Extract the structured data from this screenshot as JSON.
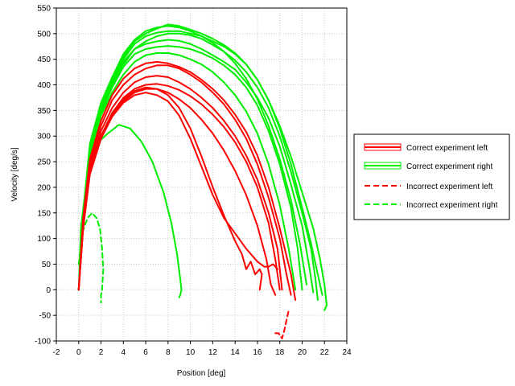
{
  "chart_data": {
    "type": "line",
    "title": "",
    "xlabel": "Position [deg]",
    "ylabel": "Velocity [deg/s]",
    "xlim": [
      -2,
      24
    ],
    "ylim": [
      -100,
      550
    ],
    "xticks": [
      -2,
      0,
      2,
      4,
      6,
      8,
      10,
      12,
      14,
      16,
      18,
      20,
      22,
      24
    ],
    "yticks": [
      -100,
      -50,
      0,
      50,
      100,
      150,
      200,
      250,
      300,
      350,
      400,
      450,
      500,
      550
    ],
    "grid": true,
    "legend_position": "right",
    "legend": [
      {
        "label": "Correct experiment left",
        "color": "#ff0000",
        "style": "solid"
      },
      {
        "label": "Correct experiment right",
        "color": "#00ee00",
        "style": "solid"
      },
      {
        "label": "Incorrect experiment left",
        "color": "#ff0000",
        "style": "dashed"
      },
      {
        "label": "Incorrect experiment right",
        "color": "#00ee00",
        "style": "dashed"
      }
    ],
    "series": [
      {
        "name": "Correct experiment right",
        "color": "#00ee00",
        "style": "solid",
        "x": [
          0,
          0.2,
          0.8,
          1.6,
          2.6,
          3.6,
          4.6,
          5.6,
          6.6,
          7.6,
          8.3,
          8.8,
          9.1,
          9.2,
          9.1,
          9.0
        ],
        "y": [
          0,
          120,
          230,
          285,
          305,
          322,
          315,
          290,
          250,
          190,
          130,
          70,
          20,
          0,
          -10,
          -15
        ]
      },
      {
        "name": "Correct experiment right",
        "color": "#00ee00",
        "style": "solid",
        "x": [
          0,
          0.4,
          1.0,
          2.0,
          3.0,
          4.0,
          5.0,
          6.0,
          7.0,
          8.0,
          9.0,
          10.0,
          11.0,
          12.0,
          13.0,
          14.0,
          15.0,
          16.0,
          17.0,
          18.0,
          19.0,
          20.0,
          21.0,
          21.6,
          22.0,
          22.2,
          22.0
        ],
        "y": [
          0,
          150,
          280,
          360,
          410,
          450,
          480,
          495,
          502,
          505,
          505,
          500,
          495,
          485,
          475,
          460,
          440,
          410,
          370,
          320,
          260,
          190,
          120,
          60,
          10,
          -30,
          -40
        ]
      },
      {
        "name": "Correct experiment right",
        "color": "#00ee00",
        "style": "solid",
        "x": [
          0,
          0.4,
          1.0,
          2.0,
          3.0,
          4.0,
          5.0,
          6.0,
          7.0,
          8.0,
          9.0,
          10.0,
          11.0,
          12.0,
          13.0,
          14.0,
          15.0,
          16.0,
          17.0,
          18.0,
          19.0,
          20.0,
          20.8,
          21.2,
          21.4
        ],
        "y": [
          0,
          140,
          270,
          350,
          400,
          440,
          470,
          485,
          495,
          500,
          500,
          497,
          490,
          478,
          465,
          448,
          425,
          395,
          355,
          300,
          230,
          150,
          80,
          20,
          -20
        ]
      },
      {
        "name": "Correct experiment right",
        "color": "#00ee00",
        "style": "solid",
        "x": [
          0,
          0.4,
          1.0,
          2.0,
          3.0,
          4.0,
          5.0,
          6.0,
          7.0,
          8.0,
          9.0,
          10.0,
          11.0,
          12.0,
          13.0,
          14.0,
          15.0,
          16.0,
          17.0,
          18.0,
          19.0,
          20.0,
          20.6,
          21.0
        ],
        "y": [
          0,
          145,
          275,
          355,
          405,
          445,
          470,
          480,
          485,
          488,
          486,
          480,
          470,
          458,
          445,
          430,
          405,
          375,
          335,
          280,
          205,
          125,
          50,
          -5
        ]
      },
      {
        "name": "Correct experiment right",
        "color": "#00ee00",
        "style": "solid",
        "x": [
          0,
          0.4,
          1.0,
          2.0,
          3.0,
          4.0,
          5.0,
          6.0,
          7.0,
          8.0,
          9.0,
          10.0,
          11.0,
          12.0,
          13.0,
          14.0,
          15.0,
          16.0,
          17.0,
          18.0,
          19.0,
          19.6,
          20.0
        ],
        "y": [
          0,
          140,
          265,
          345,
          395,
          435,
          460,
          470,
          474,
          476,
          474,
          470,
          462,
          452,
          438,
          420,
          395,
          360,
          310,
          245,
          160,
          80,
          0
        ]
      },
      {
        "name": "Correct experiment right",
        "color": "#00ee00",
        "style": "solid",
        "x": [
          0,
          0.4,
          1.0,
          2.0,
          3.0,
          4.0,
          5.0,
          6.0,
          7.0,
          8.0,
          9.0,
          10.0,
          11.0,
          12.0,
          13.0,
          14.0,
          15.0,
          16.0,
          17.0,
          18.0,
          19.0,
          19.8,
          20.4
        ],
        "y": [
          0,
          150,
          285,
          365,
          415,
          460,
          488,
          505,
          512,
          515,
          512,
          505,
          495,
          482,
          465,
          442,
          412,
          372,
          320,
          255,
          175,
          90,
          10
        ]
      },
      {
        "name": "Correct experiment right",
        "color": "#00ee00",
        "style": "solid",
        "x": [
          0,
          0.4,
          1.0,
          2.0,
          3.0,
          4.0,
          5.0,
          6.0,
          7.0,
          8.0,
          9.0,
          10.0,
          11.0,
          12.0,
          13.0,
          14.0,
          15.0,
          16.0,
          17.0,
          18.0,
          18.8,
          19.4
        ],
        "y": [
          0,
          140,
          260,
          340,
          385,
          420,
          445,
          458,
          462,
          462,
          458,
          450,
          440,
          425,
          405,
          380,
          348,
          305,
          245,
          165,
          80,
          0
        ]
      },
      {
        "name": "Correct experiment right",
        "color": "#00ee00",
        "style": "solid",
        "x": [
          0,
          0.4,
          1.0,
          2.0,
          3.0,
          4.0,
          5.0,
          6.0,
          7.0,
          8.0,
          9.0,
          10.0,
          11.0,
          12.0,
          13.0,
          14.0,
          15.0,
          16.0,
          17.0,
          18.0,
          19.0,
          20.0,
          20.8,
          21.4,
          21.8
        ],
        "y": [
          0,
          150,
          280,
          360,
          410,
          455,
          485,
          500,
          510,
          518,
          515,
          508,
          500,
          490,
          478,
          462,
          440,
          410,
          370,
          315,
          245,
          160,
          90,
          30,
          -10
        ]
      },
      {
        "name": "Correct experiment left",
        "color": "#ff0000",
        "style": "solid",
        "x": [
          0,
          0.4,
          1.0,
          2.0,
          3.0,
          4.0,
          5.0,
          6.0,
          7.0,
          8.0,
          9.0,
          10.0,
          11.0,
          12.0,
          13.0,
          14.0,
          15.0,
          16.0,
          17.0,
          17.8,
          18.2
        ],
        "y": [
          0,
          130,
          240,
          310,
          355,
          385,
          405,
          415,
          418,
          415,
          405,
          392,
          375,
          355,
          330,
          300,
          262,
          215,
          150,
          80,
          0
        ]
      },
      {
        "name": "Correct experiment left",
        "color": "#ff0000",
        "style": "solid",
        "x": [
          0,
          0.4,
          1.0,
          2.0,
          3.0,
          4.0,
          5.0,
          6.0,
          7.0,
          8.0,
          9.0,
          10.0,
          11.0,
          12.0,
          13.0,
          14.0,
          15.0,
          16.0,
          17.0,
          18.0,
          18.6,
          19.0
        ],
        "y": [
          0,
          135,
          250,
          320,
          370,
          400,
          420,
          432,
          438,
          438,
          432,
          420,
          405,
          385,
          362,
          332,
          295,
          245,
          180,
          100,
          30,
          -10
        ]
      },
      {
        "name": "Correct experiment left",
        "color": "#ff0000",
        "style": "solid",
        "x": [
          0,
          0.4,
          1.0,
          2.0,
          3.0,
          4.0,
          5.0,
          6.0,
          7.0,
          8.0,
          9.0,
          10.0,
          11.0,
          12.0,
          13.0,
          14.0,
          15.0,
          16.0,
          17.0,
          17.6,
          18.0
        ],
        "y": [
          0,
          125,
          235,
          300,
          345,
          375,
          392,
          400,
          402,
          398,
          390,
          378,
          362,
          342,
          318,
          288,
          250,
          200,
          130,
          60,
          0
        ]
      },
      {
        "name": "Correct experiment left",
        "color": "#ff0000",
        "style": "solid",
        "x": [
          0,
          0.4,
          1.0,
          2.0,
          3.0,
          4.0,
          5.0,
          6.0,
          7.0,
          8.0,
          9.0,
          10.0,
          11.0,
          12.0,
          13.0,
          14.0,
          15.0,
          16.0,
          17.0,
          18.0,
          19.0,
          19.4
        ],
        "y": [
          0,
          140,
          255,
          330,
          380,
          412,
          432,
          442,
          445,
          442,
          435,
          425,
          410,
          392,
          370,
          342,
          308,
          262,
          200,
          120,
          30,
          -20
        ]
      },
      {
        "name": "Correct experiment left",
        "color": "#ff0000",
        "style": "solid",
        "x": [
          0,
          0.4,
          1.0,
          2.0,
          3.0,
          4.0,
          5.0,
          6.0,
          7.0,
          8.0,
          9.0,
          10.0,
          11.0,
          12.0,
          13.0,
          14.0,
          15.0,
          16.0,
          16.8,
          17.2,
          17.6
        ],
        "y": [
          0,
          120,
          228,
          295,
          340,
          368,
          385,
          392,
          392,
          385,
          372,
          355,
          332,
          305,
          272,
          232,
          185,
          125,
          60,
          10,
          -10
        ]
      },
      {
        "name": "Correct experiment left",
        "color": "#ff0000",
        "style": "solid",
        "x": [
          0,
          0.4,
          1.0,
          2.0,
          3.0,
          4.0,
          5.0,
          6.0,
          7.0,
          8.0,
          9.0,
          10.0,
          11.0,
          12.0,
          13.0,
          14.0,
          14.6,
          15.0,
          15.4,
          15.8,
          16.2,
          16.4,
          16.2
        ],
        "y": [
          0,
          120,
          230,
          300,
          345,
          372,
          388,
          395,
          392,
          380,
          355,
          315,
          260,
          200,
          145,
          95,
          70,
          40,
          55,
          30,
          40,
          30,
          0
        ]
      },
      {
        "name": "Correct experiment left",
        "color": "#ff0000",
        "style": "solid",
        "x": [
          0,
          0.4,
          1.0,
          2.0,
          3.0,
          4.0,
          5.0,
          6.0,
          7.0,
          8.0,
          9.0,
          10.0,
          11.0,
          12.0,
          13.0,
          14.0,
          15.0,
          16.0,
          16.6,
          17.0,
          17.4,
          17.8
        ],
        "y": [
          0,
          120,
          225,
          295,
          338,
          365,
          380,
          385,
          380,
          368,
          340,
          295,
          240,
          185,
          140,
          110,
          80,
          55,
          45,
          45,
          50,
          40
        ]
      },
      {
        "name": "Incorrect experiment right",
        "color": "#00ee00",
        "style": "dashed",
        "x": [
          0,
          0.3,
          0.8,
          1.2,
          1.6,
          1.9,
          2.1,
          2.2,
          2.1,
          2.0,
          2.0
        ],
        "y": [
          50,
          110,
          140,
          150,
          140,
          120,
          80,
          40,
          0,
          -10,
          -25
        ]
      },
      {
        "name": "Incorrect experiment left",
        "color": "#ff0000",
        "style": "dashed",
        "x": [
          17.6,
          17.9,
          18.2,
          18.4,
          18.6,
          18.8
        ],
        "y": [
          -85,
          -85,
          -95,
          -80,
          -60,
          -40
        ]
      }
    ]
  }
}
